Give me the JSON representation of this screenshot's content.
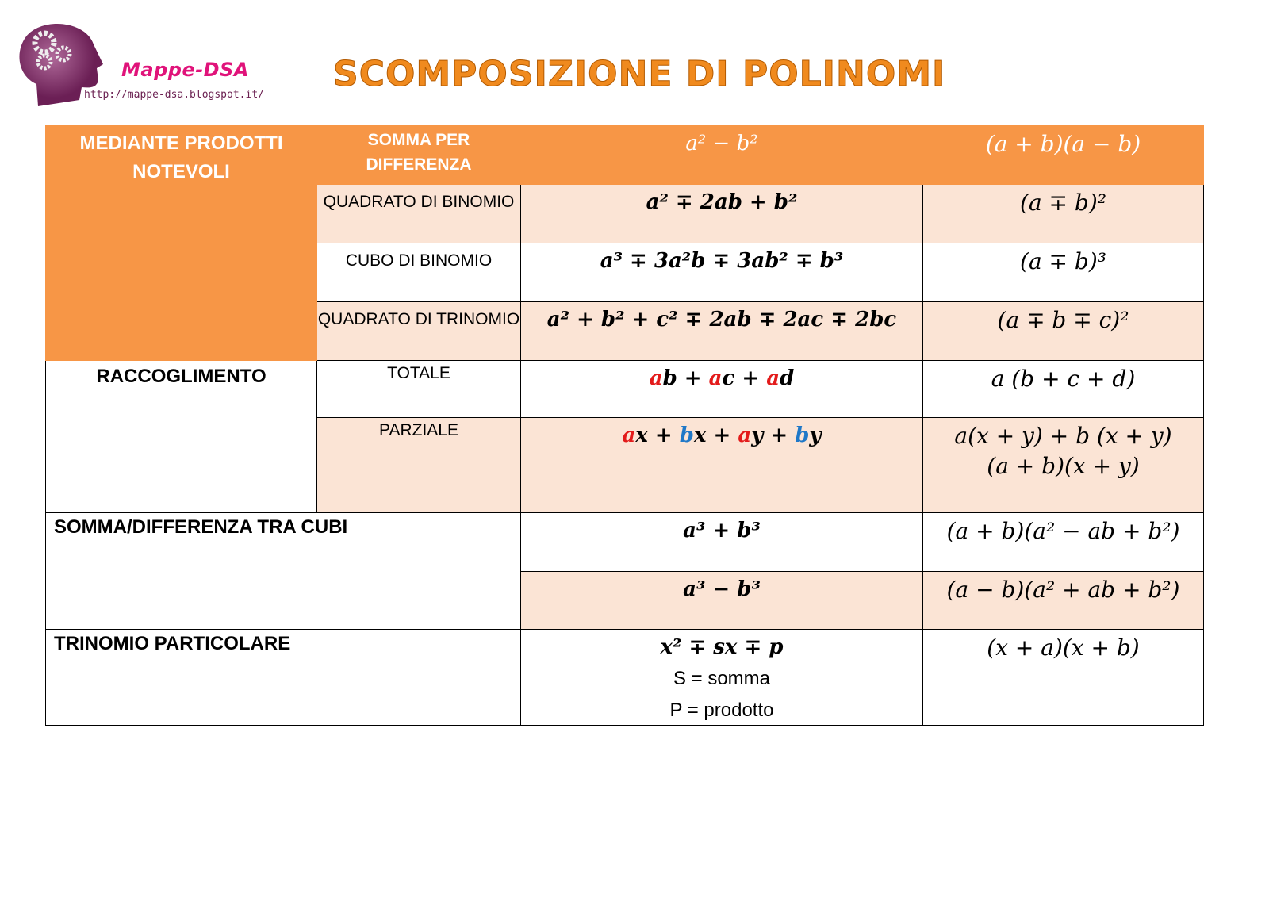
{
  "logo": {
    "brand": "Mappe-DSA",
    "url": "http://mappe-dsa.blogspot.it/"
  },
  "title": "SCOMPOSIZIONE DI POLINOMI",
  "colors": {
    "header": "#f79646",
    "band": "#fbe4d5",
    "red": "#e31b1b",
    "blue": "#1f78c8",
    "title": "#f08a1e"
  },
  "rows": {
    "prodotti": "MEDIANTE PRODOTTI NOTEVOLI",
    "somma_diff": {
      "label": "SOMMA PER DIFFERENZA",
      "expr": "a² − b²",
      "fact": "(a + b)(a − b)"
    },
    "quad_bin": {
      "label": "QUADRATO DI BINOMIO",
      "expr": "a²  ∓ 2ab + b²",
      "fact": "(a ∓ b)²"
    },
    "cubo_bin": {
      "label": "CUBO DI BINOMIO",
      "expr": "a³ ∓ 3a²b  ∓ 3ab² ∓ b³",
      "fact": "(a ∓ b)³"
    },
    "quad_trin": {
      "label": "QUADRATO DI TRINOMIO",
      "expr": "a² + b² +  c² ∓ 2ab ∓ 2ac ∓ 2bc",
      "fact": "(a ∓ b ∓ c)²"
    },
    "raccoglimento": "RACCOGLIMENTO",
    "totale": {
      "label": "TOTALE",
      "expr": [
        {
          "t": "a",
          "c": "red"
        },
        {
          "t": "b + "
        },
        {
          "t": "a",
          "c": "red"
        },
        {
          "t": "c + "
        },
        {
          "t": "a",
          "c": "red"
        },
        {
          "t": "d"
        }
      ],
      "fact": "a (b + c + d)"
    },
    "parziale": {
      "label": "PARZIALE",
      "expr": [
        {
          "t": "a",
          "c": "red"
        },
        {
          "t": "x + "
        },
        {
          "t": "b",
          "c": "blue"
        },
        {
          "t": "x + "
        },
        {
          "t": "a",
          "c": "red"
        },
        {
          "t": "y + "
        },
        {
          "t": "b",
          "c": "blue"
        },
        {
          "t": "y"
        }
      ],
      "fact1": "a(x + y) + b (x + y)",
      "fact2": "(a + b)(x + y)"
    },
    "cubi": {
      "label": "SOMMA/DIFFERENZA TRA CUBI",
      "expr1": "a³ + b³",
      "fact1": "(a + b)(a² − ab + b²)",
      "expr2": "a³ − b³",
      "fact2": "(a − b)(a² + ab + b²)"
    },
    "trinomio": {
      "label": "TRINOMIO PARTICOLARE",
      "expr": "x² ∓ sx ∓ p",
      "note1": "S = somma",
      "note2": "P = prodotto",
      "fact": "(x + a)(x + b)"
    }
  }
}
